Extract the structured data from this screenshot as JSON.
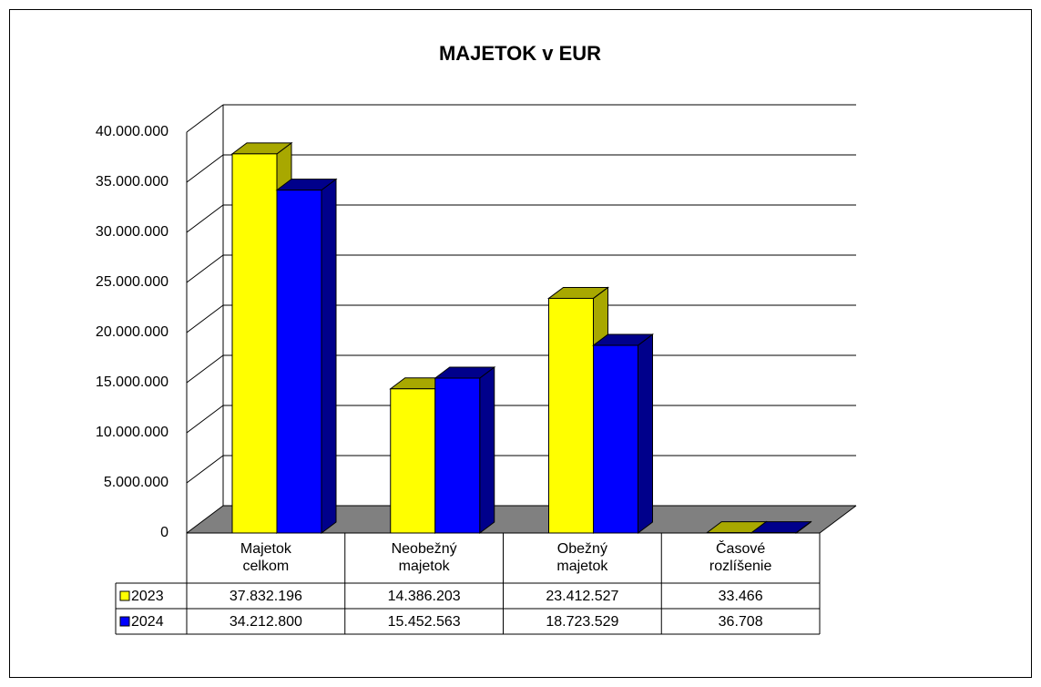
{
  "chart_data": {
    "type": "bar3d",
    "title": "MAJETOK  v EUR",
    "categories": [
      "Majetok celkom",
      "Neobežný majetok",
      "Obežný majetok",
      "Časové rozlíšenie"
    ],
    "series": [
      {
        "name": "2023",
        "color": "#ffff00",
        "side": "#a8a800",
        "values": [
          37832196,
          14386203,
          23412527,
          33466
        ],
        "value_labels": [
          "37.832.196",
          "14.386.203",
          "23.412.527",
          "33.466"
        ]
      },
      {
        "name": "2024",
        "color": "#0000ff",
        "side": "#00008b",
        "values": [
          34212800,
          15452563,
          18723529,
          36708
        ],
        "value_labels": [
          "34.212.800",
          "15.452.563",
          "18.723.529",
          "36.708"
        ]
      }
    ],
    "ylim": [
      0,
      40000000
    ],
    "yticks": [
      {
        "value": 0,
        "label": "0"
      },
      {
        "value": 5000000,
        "label": "5.000.000"
      },
      {
        "value": 10000000,
        "label": "10.000.000"
      },
      {
        "value": 15000000,
        "label": "15.000.000"
      },
      {
        "value": 20000000,
        "label": "20.000.000"
      },
      {
        "value": 25000000,
        "label": "25.000.000"
      },
      {
        "value": 30000000,
        "label": "30.000.000"
      },
      {
        "value": 35000000,
        "label": "35.000.000"
      },
      {
        "value": 40000000,
        "label": "40.000.000"
      }
    ],
    "grid": true
  }
}
